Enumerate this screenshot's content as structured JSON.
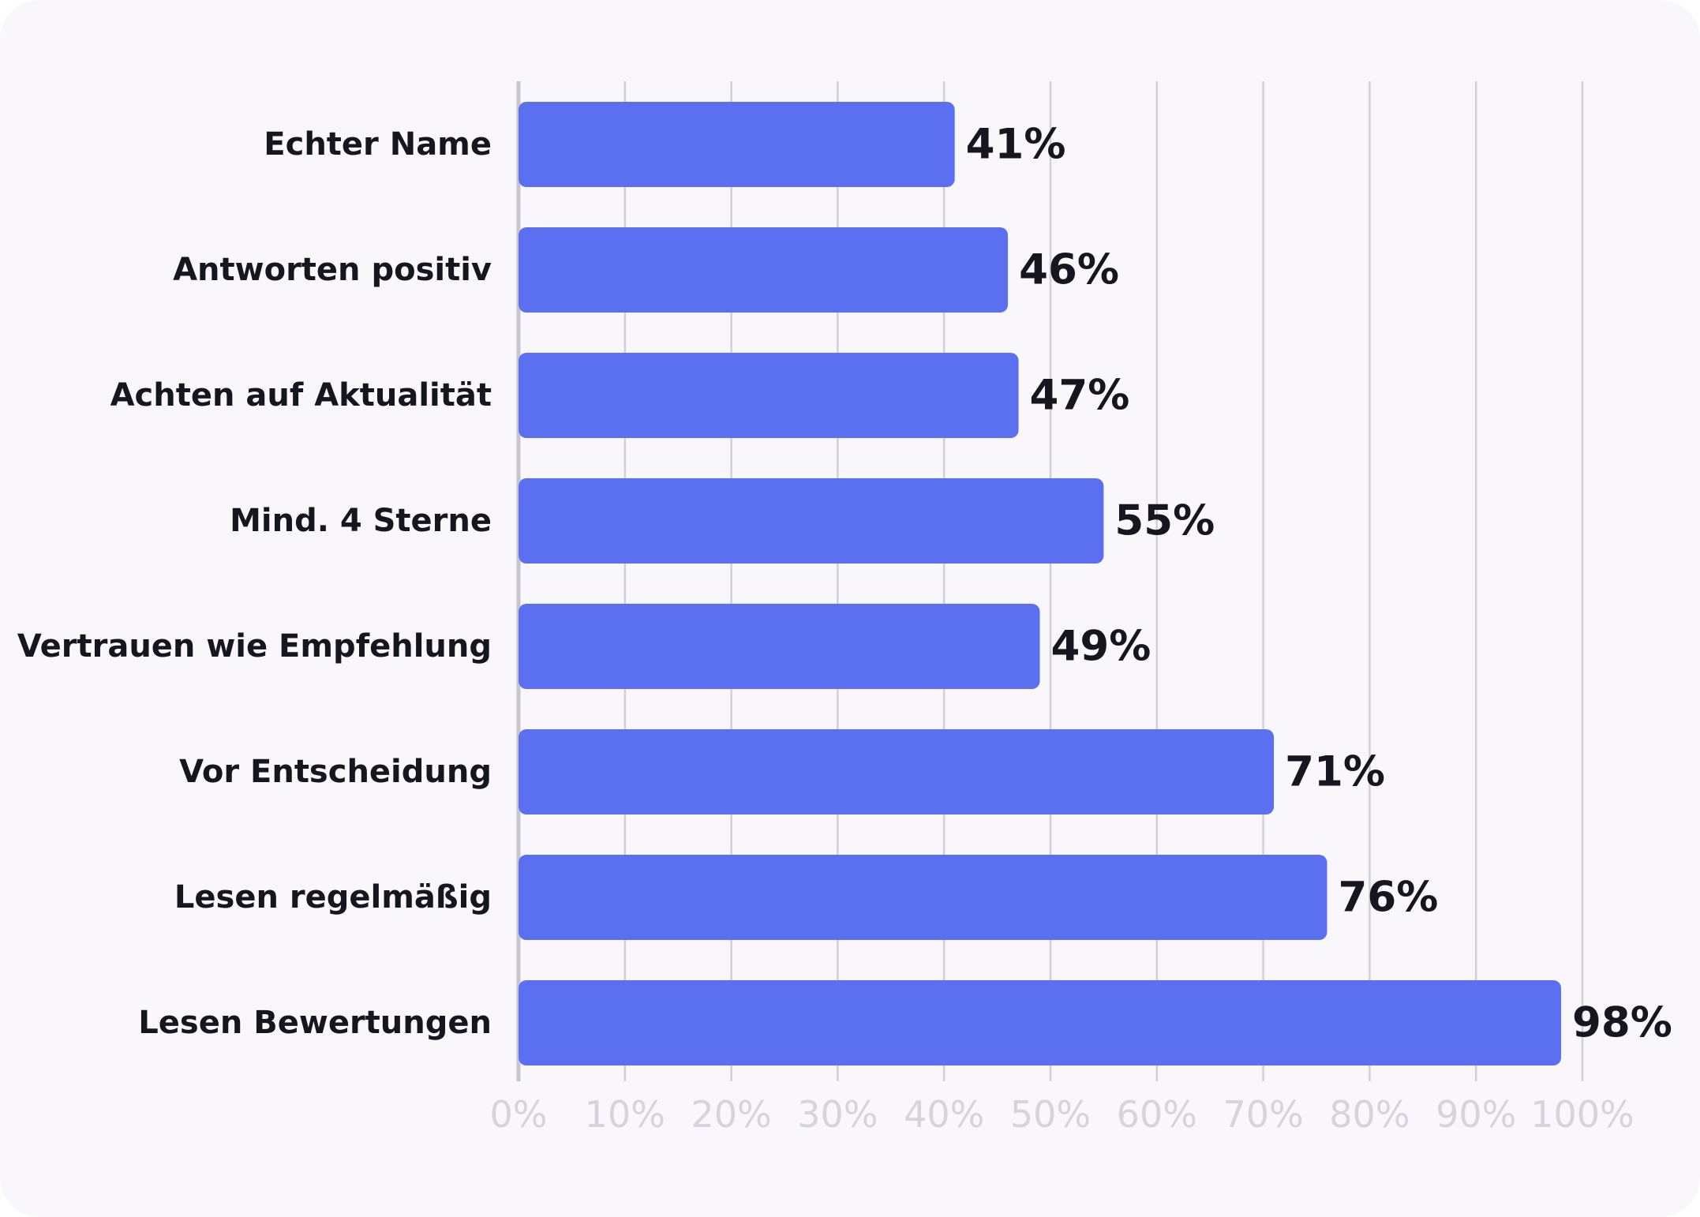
{
  "chart_data": {
    "type": "bar",
    "orientation": "horizontal",
    "categories": [
      "Echter Name",
      "Antworten positiv",
      "Achten auf Aktualität",
      "Mind. 4 Sterne",
      "Vertrauen wie Empfehlung",
      "Vor Entscheidung",
      "Lesen regelmäßig",
      "Lesen Bewertungen"
    ],
    "values": [
      41,
      46,
      47,
      55,
      49,
      71,
      76,
      98
    ],
    "value_labels": [
      "41%",
      "46%",
      "47%",
      "55%",
      "49%",
      "71%",
      "76%",
      "98%"
    ],
    "xlim": [
      0,
      100
    ],
    "x_ticks": [
      0,
      10,
      20,
      30,
      40,
      50,
      60,
      70,
      80,
      90,
      100
    ],
    "x_tick_labels": [
      "0%",
      "10%",
      "20%",
      "30%",
      "40%",
      "50%",
      "60%",
      "70%",
      "80%",
      "90%",
      "100%"
    ],
    "grid": true,
    "legend": "none",
    "title": "",
    "xlabel": "",
    "ylabel": ""
  },
  "colors": {
    "bar": "#5b70f0",
    "grid": "#d2d0d6",
    "axis": "#c8c6cc",
    "tick_text": "#d6d4da",
    "label_text": "#16161e",
    "background": "#f9f7fb"
  }
}
